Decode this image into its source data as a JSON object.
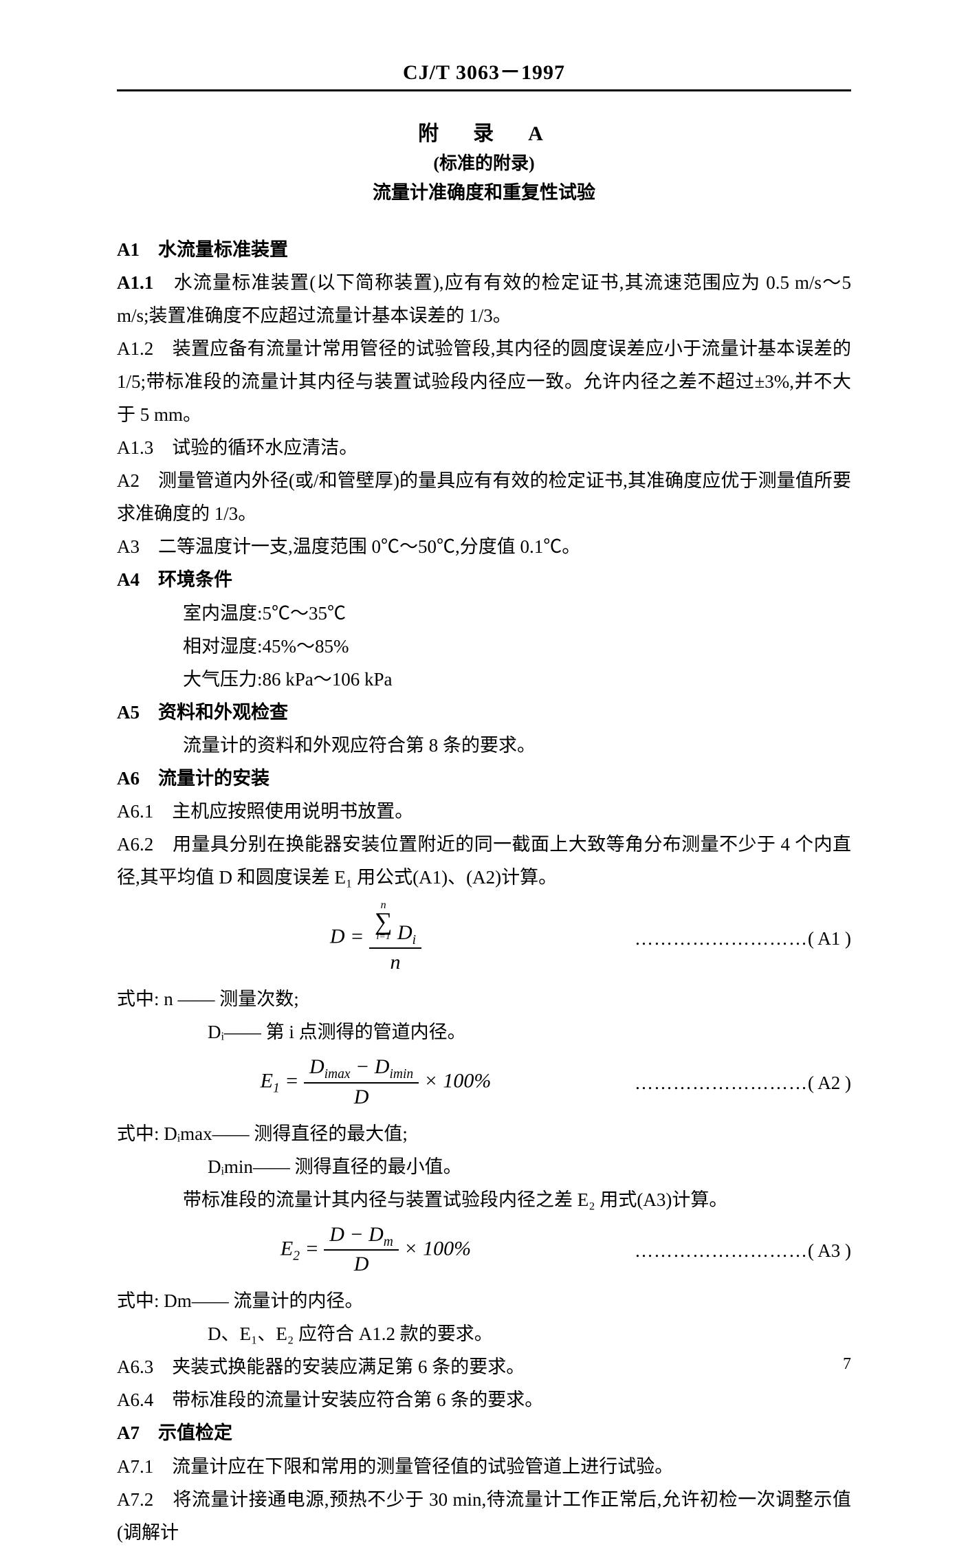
{
  "header_code": "CJ/T 3063－1997",
  "appendix": {
    "title": "附　录　A",
    "sub": "(标准的附录)",
    "desc": "流量计准确度和重复性试验"
  },
  "a1_head": "A1　水流量标准装置",
  "a1_1": "A1.1　水流量标准装置(以下简称装置),应有有效的检定证书,其流速范围应为 0.5 m/s～5 m/s;装置准确度不应超过流量计基本误差的 1/3。",
  "a1_2": "A1.2　装置应备有流量计常用管径的试验管段,其内径的圆度误差应小于流量计基本误差的 1/5;带标准段的流量计其内径与装置试验段内径应一致。允许内径之差不超过±3%,并不大于 5 mm。",
  "a1_3": "A1.3　试验的循环水应清洁。",
  "a2": "A2　测量管道内外径(或/和管壁厚)的量具应有有效的检定证书,其准确度应优于测量值所要求准确度的 1/3。",
  "a3": "A3　二等温度计一支,温度范围 0℃～50℃,分度值 0.1℃。",
  "a4_head": "A4　环境条件",
  "a4_1": "室内温度:5℃～35℃",
  "a4_2": "相对湿度:45%～85%",
  "a4_3": "大气压力:86 kPa～106 kPa",
  "a5_head": "A5　资料和外观检查",
  "a5_1": "流量计的资料和外观应符合第 8 条的要求。",
  "a6_head": "A6　流量计的安装",
  "a6_1": "A6.1　主机应按照使用说明书放置。",
  "a6_2": "A6.2　用量具分别在换能器安装位置附近的同一截面上大致等角分布测量不少于 4 个内直径,其平均值 D 和圆度误差 E₁ 用公式(A1)、(A2)计算。",
  "formula_a1_label": "( A1 )",
  "a6_2_expl1": "式中: n —— 测量次数;",
  "a6_2_expl2": "Dᵢ—— 第 i 点测得的管道内径。",
  "formula_a2_label": "( A2 )",
  "a6_2_expl3": "式中: Dᵢmax—— 测得直径的最大值;",
  "a6_2_expl4": "Dᵢmin—— 测得直径的最小值。",
  "a6_2_expl5": "带标准段的流量计其内径与装置试验段内径之差 E₂ 用式(A3)计算。",
  "formula_a3_label": "( A3 )",
  "a6_2_expl6": "式中: Dm—— 流量计的内径。",
  "a6_2_expl7": "D、E₁、E₂ 应符合 A1.2 款的要求。",
  "a6_3": "A6.3　夹装式换能器的安装应满足第 6 条的要求。",
  "a6_4": "A6.4　带标准段的流量计安装应符合第 6 条的要求。",
  "a7_head": "A7　示值检定",
  "a7_1": "A7.1　流量计应在下限和常用的测量管径值的试验管道上进行试验。",
  "a7_2": "A7.2　将流量计接通电源,预热不少于 30 min,待流量计工作正常后,允许初检一次调整示值(调解计",
  "dots": "………………………",
  "pagenum": "7",
  "colors": {
    "text": "#000000",
    "bg": "#ffffff"
  }
}
